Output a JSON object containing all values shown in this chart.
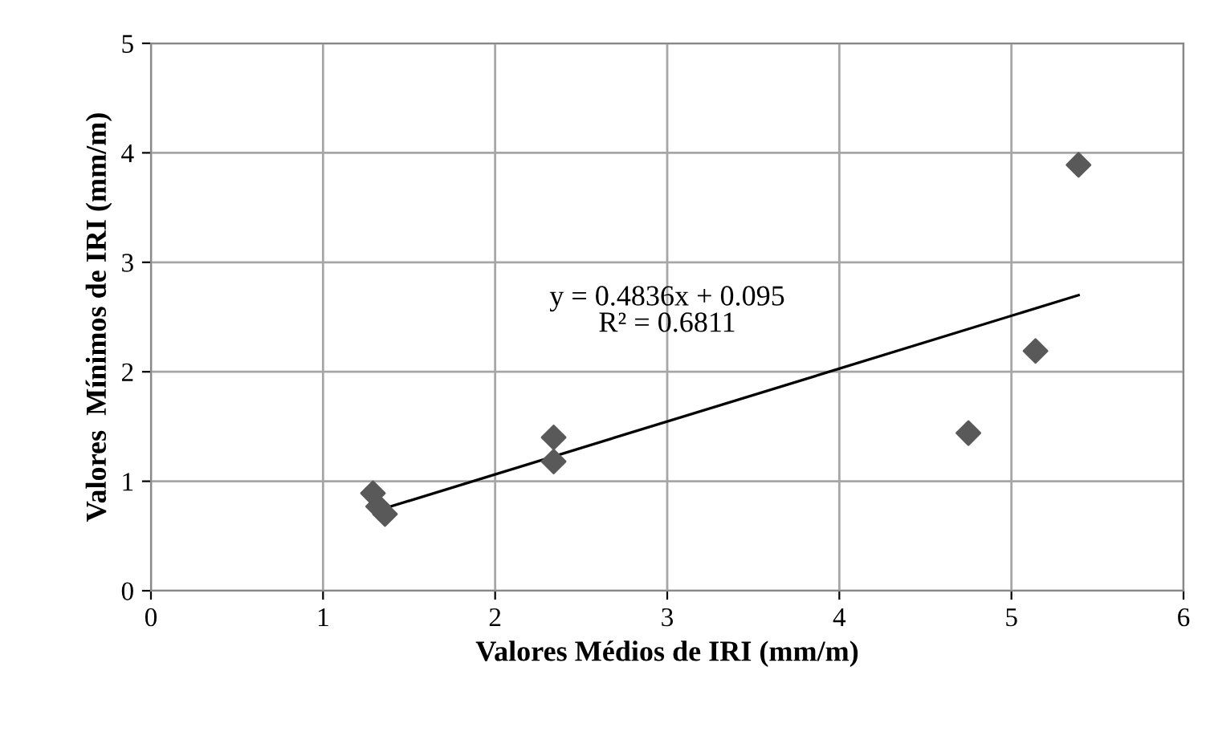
{
  "chart_data": {
    "type": "scatter",
    "xlabel": "Valores Médios de IRI (mm/m)",
    "ylabel": "Valores  Mínimos de IRI (mm/m)",
    "series": [
      {
        "color": "#595959",
        "marker": "diamond",
        "x": [
          1.29,
          1.32,
          1.36,
          2.34,
          2.34,
          4.75,
          5.14,
          5.39
        ],
        "values": [
          0.89,
          0.77,
          0.7,
          1.4,
          1.18,
          1.44,
          2.19,
          3.89
        ]
      },
      {
        "type": "line",
        "color": "#000000",
        "marker": "none",
        "x": [
          1.29,
          5.39
        ],
        "values": [
          0.72,
          2.7
        ]
      }
    ],
    "annotations": [
      "y = 0.4836x + 0.095\nR² = 0.6811"
    ],
    "xlim": [
      0,
      6
    ],
    "ylim": [
      0,
      5
    ],
    "xticks": [
      0,
      1,
      2,
      3,
      4,
      5,
      6
    ],
    "yticks": [
      0,
      1,
      2,
      3,
      4,
      5
    ],
    "grid": true,
    "legend": false
  }
}
